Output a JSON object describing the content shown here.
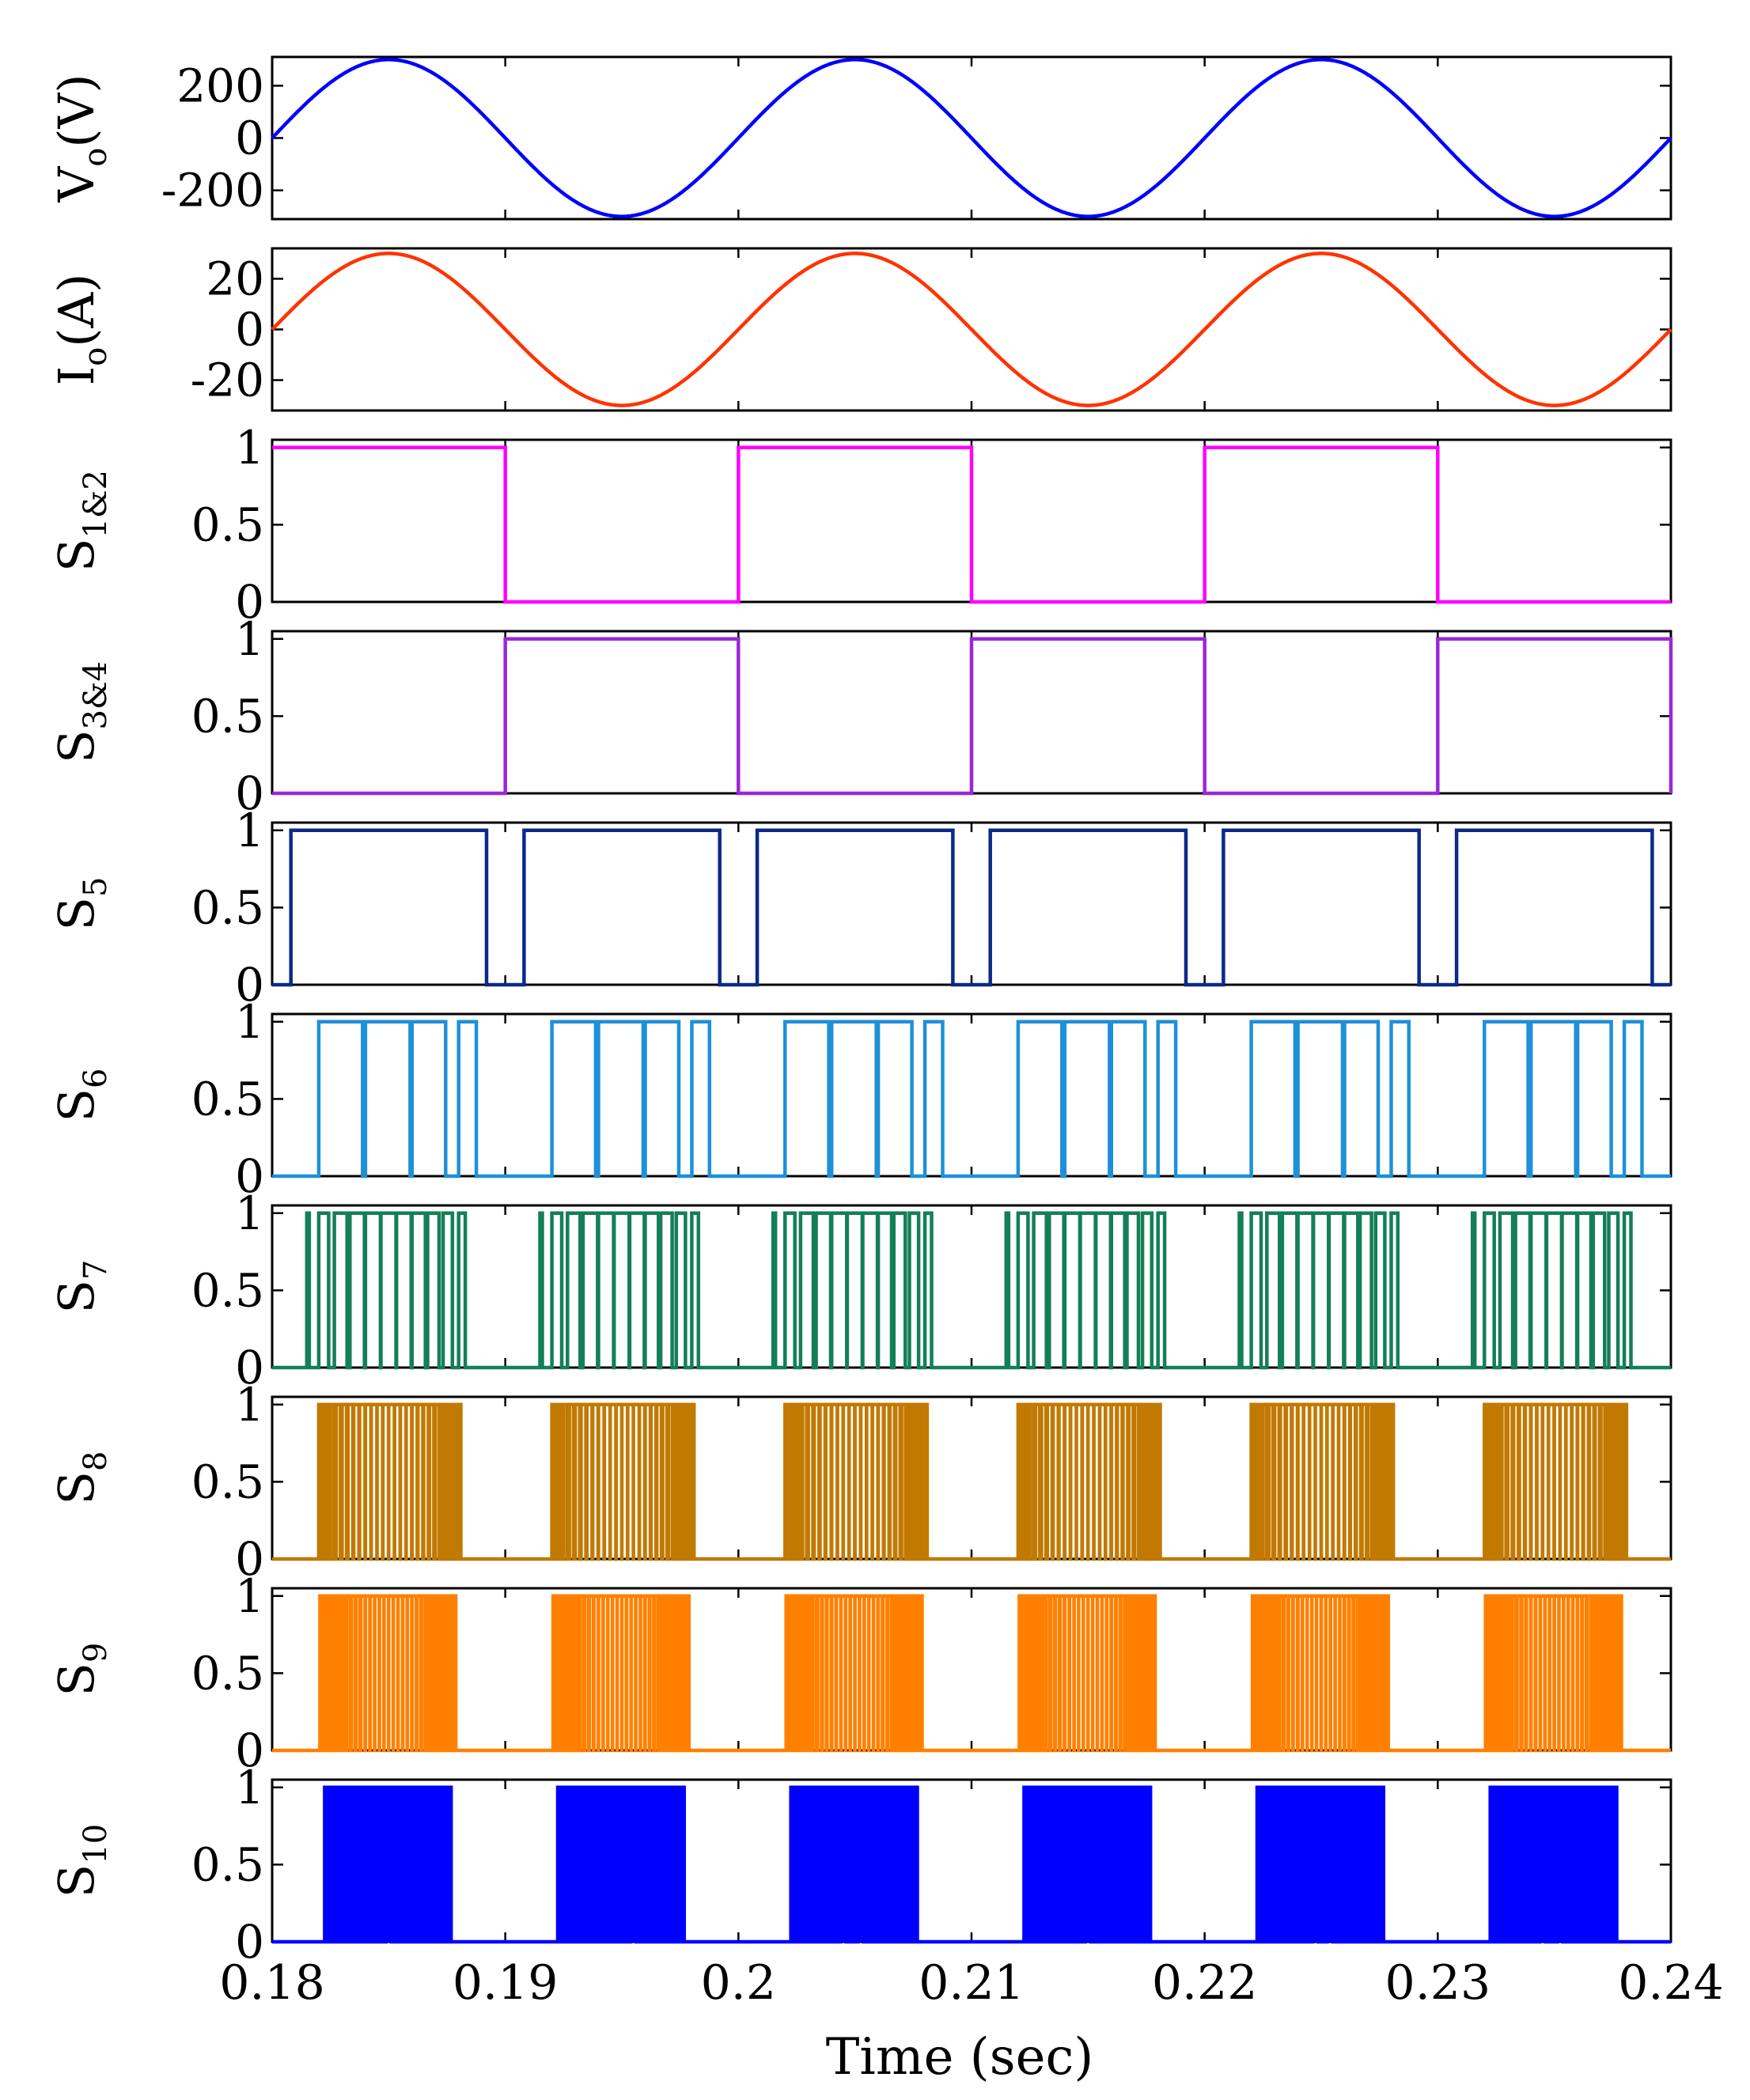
{
  "chart_data": {
    "type": "line",
    "shared_x": {
      "label": "Time (sec)",
      "range": [
        0.18,
        0.24
      ],
      "ticks": [
        0.18,
        0.19,
        0.2,
        0.21,
        0.22,
        0.23,
        0.24
      ],
      "tick_labels": [
        "0.18",
        "0.19",
        "0.2",
        "0.21",
        "0.22",
        "0.23",
        "0.24"
      ]
    },
    "subplots": [
      {
        "id": "vo",
        "ylabel_main": "V",
        "ylabel_sub": "o",
        "ylabel_post": "(V)",
        "ylim": [
          -310,
          310
        ],
        "yticks": [
          200,
          0,
          -200
        ],
        "ytick_labels": [
          "200",
          "0",
          "-200"
        ],
        "color": "#0000ff",
        "signal": {
          "kind": "sine",
          "amplitude": 300,
          "frequency_hz": 50,
          "phase_deg": 0
        }
      },
      {
        "id": "io",
        "ylabel_main": "I",
        "ylabel_sub": "o",
        "ylabel_post": "(A)",
        "ylim": [
          -32,
          32
        ],
        "yticks": [
          20,
          0,
          -20
        ],
        "ytick_labels": [
          "20",
          "0",
          "-20"
        ],
        "color": "#ff3300",
        "signal": {
          "kind": "sine",
          "amplitude": 30,
          "frequency_hz": 50,
          "phase_deg": 0
        }
      },
      {
        "id": "s12",
        "ylabel_main": "S",
        "ylabel_sub": "1&2",
        "ylabel_post": "",
        "ylim": [
          0,
          1.05
        ],
        "yticks": [
          1,
          0.5,
          0
        ],
        "ytick_labels": [
          "1",
          "0.5",
          "0"
        ],
        "color": "#ff00ff",
        "signal": {
          "kind": "square",
          "period": 0.02,
          "on_from": 0.0,
          "on_to": 0.01,
          "t0": 0.18
        }
      },
      {
        "id": "s34",
        "ylabel_main": "S",
        "ylabel_sub": "3&4",
        "ylabel_post": "",
        "ylim": [
          0,
          1.05
        ],
        "yticks": [
          1,
          0.5,
          0
        ],
        "ytick_labels": [
          "1",
          "0.5",
          "0"
        ],
        "color": "#9b27d6",
        "signal": {
          "kind": "square",
          "period": 0.02,
          "on_from": 0.01,
          "on_to": 0.02,
          "t0": 0.18
        }
      },
      {
        "id": "s5",
        "ylabel_main": "S",
        "ylabel_sub": "5",
        "ylabel_post": "",
        "ylim": [
          0,
          1.05
        ],
        "yticks": [
          1,
          0.5,
          0
        ],
        "ytick_labels": [
          "1",
          "0.5",
          "0"
        ],
        "color": "#0b2a8a",
        "signal": {
          "kind": "sine_pwm",
          "threshold": 0.25,
          "carrier_hz": 0
        }
      },
      {
        "id": "s6",
        "ylabel_main": "S",
        "ylabel_sub": "6",
        "ylabel_post": "",
        "ylim": [
          0,
          1.05
        ],
        "yticks": [
          1,
          0.5,
          0
        ],
        "ytick_labels": [
          "1",
          "0.5",
          "0"
        ],
        "color": "#1e90d8",
        "signal": {
          "kind": "sine_pwm",
          "threshold": 0.35,
          "carrier_hz": 500
        }
      },
      {
        "id": "s7",
        "ylabel_main": "S",
        "ylabel_sub": "7",
        "ylabel_post": "",
        "ylim": [
          0,
          1.05
        ],
        "yticks": [
          1,
          0.5,
          0
        ],
        "ytick_labels": [
          "1",
          "0.5",
          "0"
        ],
        "color": "#137f56",
        "signal": {
          "kind": "sine_pwm",
          "threshold": 0.45,
          "carrier_hz": 1500
        }
      },
      {
        "id": "s8",
        "ylabel_main": "S",
        "ylabel_sub": "8",
        "ylabel_post": "",
        "ylim": [
          0,
          1.05
        ],
        "yticks": [
          1,
          0.5,
          0
        ],
        "ytick_labels": [
          "1",
          "0.5",
          "0"
        ],
        "color": "#c27900",
        "signal": {
          "kind": "sine_pwm",
          "threshold": 0.55,
          "carrier_hz": 4000
        }
      },
      {
        "id": "s9",
        "ylabel_main": "S",
        "ylabel_sub": "9",
        "ylabel_post": "",
        "ylim": [
          0,
          1.05
        ],
        "yticks": [
          1,
          0.5,
          0
        ],
        "ytick_labels": [
          "1",
          "0.5",
          "0"
        ],
        "color": "#ff8000",
        "signal": {
          "kind": "sine_pwm",
          "threshold": 0.6,
          "carrier_hz": 5000
        }
      },
      {
        "id": "s10",
        "ylabel_main": "S",
        "ylabel_sub": "10",
        "ylabel_post": "",
        "ylim": [
          0,
          1.05
        ],
        "yticks": [
          1,
          0.5,
          0
        ],
        "ytick_labels": [
          "1",
          "0.5",
          "0"
        ],
        "color": "#0000ff",
        "signal": {
          "kind": "sine_pwm",
          "threshold": 0.65,
          "carrier_hz": 8000
        }
      }
    ]
  }
}
